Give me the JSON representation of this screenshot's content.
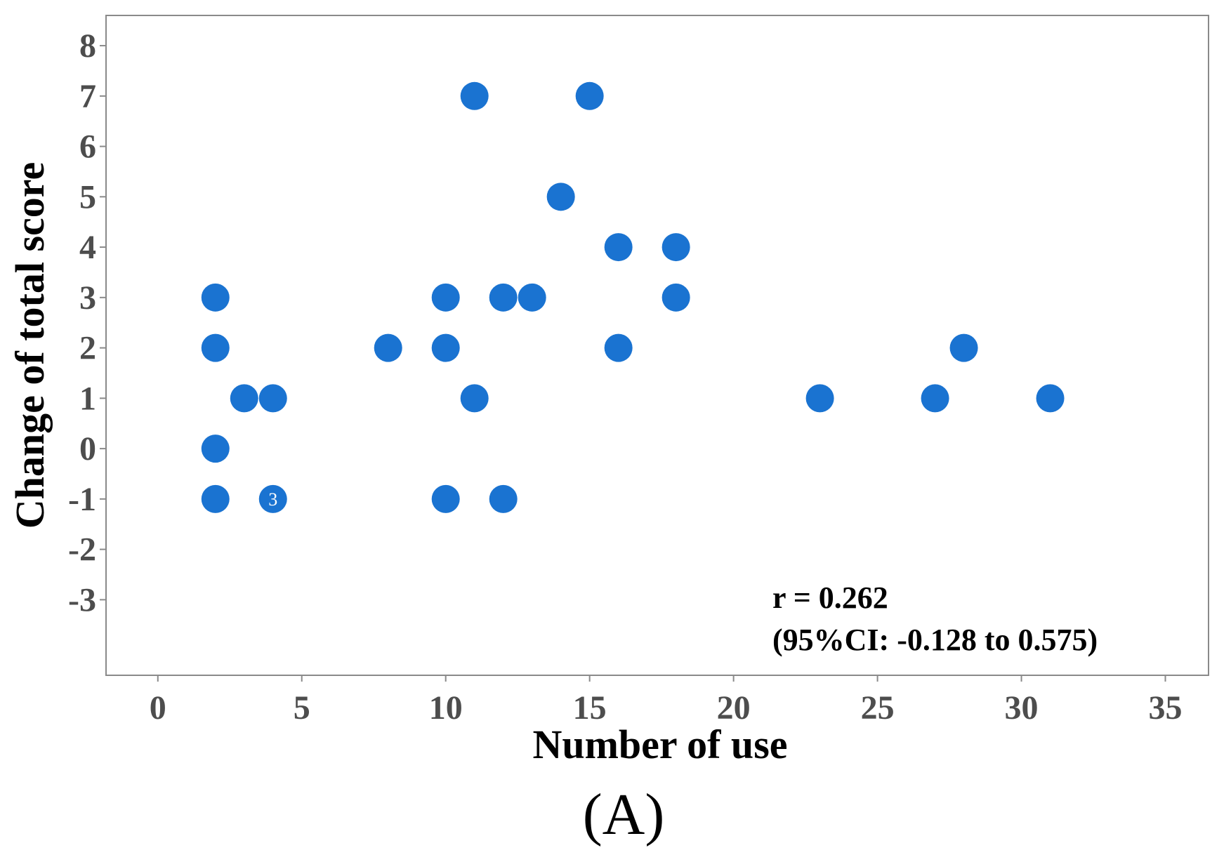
{
  "chart_data": {
    "type": "scatter",
    "xlabel": "Number of use",
    "ylabel": "Change of total score",
    "xlim": [
      -1.8,
      36.5
    ],
    "ylim": [
      -4.5,
      8.6
    ],
    "xticks": [
      0,
      5,
      10,
      15,
      20,
      25,
      30,
      35
    ],
    "yticks": [
      -3,
      -2,
      -1,
      0,
      1,
      2,
      3,
      4,
      5,
      6,
      7,
      8
    ],
    "marker_color": "#1a73d1",
    "grid": false,
    "points": [
      {
        "x": 2,
        "y": 3
      },
      {
        "x": 2,
        "y": 2
      },
      {
        "x": 3,
        "y": 1
      },
      {
        "x": 4,
        "y": 1
      },
      {
        "x": 2,
        "y": 0
      },
      {
        "x": 2,
        "y": -1
      },
      {
        "x": 4,
        "y": -1,
        "label": "3"
      },
      {
        "x": 8,
        "y": 2
      },
      {
        "x": 10,
        "y": 3
      },
      {
        "x": 10,
        "y": 2
      },
      {
        "x": 10,
        "y": -1
      },
      {
        "x": 11,
        "y": 7
      },
      {
        "x": 11,
        "y": 1
      },
      {
        "x": 12,
        "y": 3
      },
      {
        "x": 12,
        "y": -1
      },
      {
        "x": 13,
        "y": 3
      },
      {
        "x": 14,
        "y": 5
      },
      {
        "x": 15,
        "y": 7
      },
      {
        "x": 16,
        "y": 4
      },
      {
        "x": 16,
        "y": 2
      },
      {
        "x": 18,
        "y": 4
      },
      {
        "x": 18,
        "y": 3
      },
      {
        "x": 23,
        "y": 1
      },
      {
        "x": 27,
        "y": 1
      },
      {
        "x": 28,
        "y": 2
      },
      {
        "x": 31,
        "y": 1
      }
    ],
    "annotation_lines": [
      "r = 0.262",
      "(95%CI: -0.128 to 0.575)"
    ]
  },
  "panel_label": "(A)"
}
